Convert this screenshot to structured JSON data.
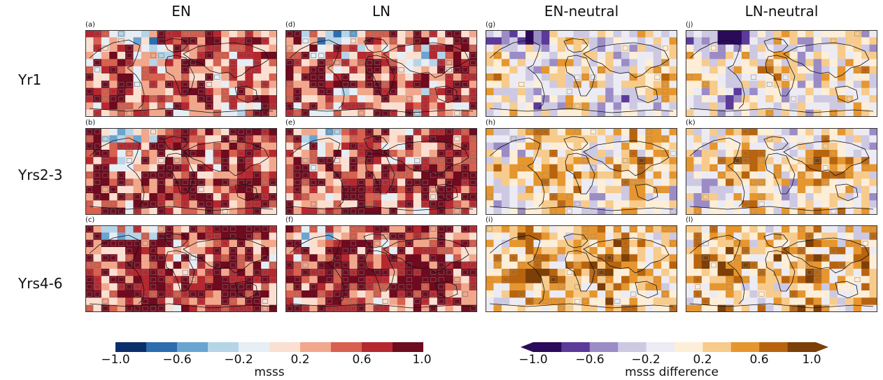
{
  "columns": [
    "EN",
    "LN",
    "EN-neutral",
    "LN-neutral"
  ],
  "rows": [
    "Yr1",
    "Yrs2-3",
    "Yrs4-6"
  ],
  "panel_labels": [
    [
      "(a)",
      "(d)",
      "(g)",
      "(j)"
    ],
    [
      "(b)",
      "(e)",
      "(h)",
      "(k)"
    ],
    [
      "(c)",
      "(f)",
      "(i)",
      "(l)"
    ]
  ],
  "colorbar_left": {
    "label": "msss",
    "ticks": [
      "−1.0",
      "−0.6",
      "−0.2",
      "0.2",
      "0.6",
      "1.0"
    ],
    "colors": [
      "#0b2f6a",
      "#2d6cae",
      "#6aa4d0",
      "#b5d4e8",
      "#e6eef5",
      "#fbe0d2",
      "#f1a78c",
      "#d7604f",
      "#b52830",
      "#6e0b1f"
    ]
  },
  "colorbar_right": {
    "label": "msss difference",
    "ticks": [
      "−1.0",
      "−0.6",
      "−0.2",
      "0.2",
      "0.6",
      "1.0"
    ],
    "colors": [
      "#2c0a5b",
      "#5b3a9a",
      "#9b8cc6",
      "#cdc9e3",
      "#ecebf3",
      "#fdeed8",
      "#f7cb8c",
      "#e6962f",
      "#b8640f",
      "#7c3f08"
    ]
  },
  "chart_data": {
    "type": "heatmap",
    "title": "",
    "panels_layout": "3 rows x 4 columns of global maps",
    "row_labels": [
      "Yr1",
      "Yrs2-3",
      "Yrs4-6"
    ],
    "column_labels": [
      "EN",
      "LN",
      "EN-neutral",
      "LN-neutral"
    ],
    "colorbars": [
      {
        "label": "msss",
        "range": [
          -1.0,
          1.0
        ],
        "ticks": [
          -1.0,
          -0.6,
          -0.2,
          0.2,
          0.6,
          1.0
        ],
        "applies_to": [
          "EN",
          "LN"
        ]
      },
      {
        "label": "msss difference",
        "range": [
          -1.0,
          1.0
        ],
        "ticks": [
          -1.0,
          -0.6,
          -0.2,
          0.2,
          0.6,
          1.0
        ],
        "extend": "both",
        "applies_to": [
          "EN-neutral",
          "LN-neutral"
        ]
      }
    ]
  }
}
